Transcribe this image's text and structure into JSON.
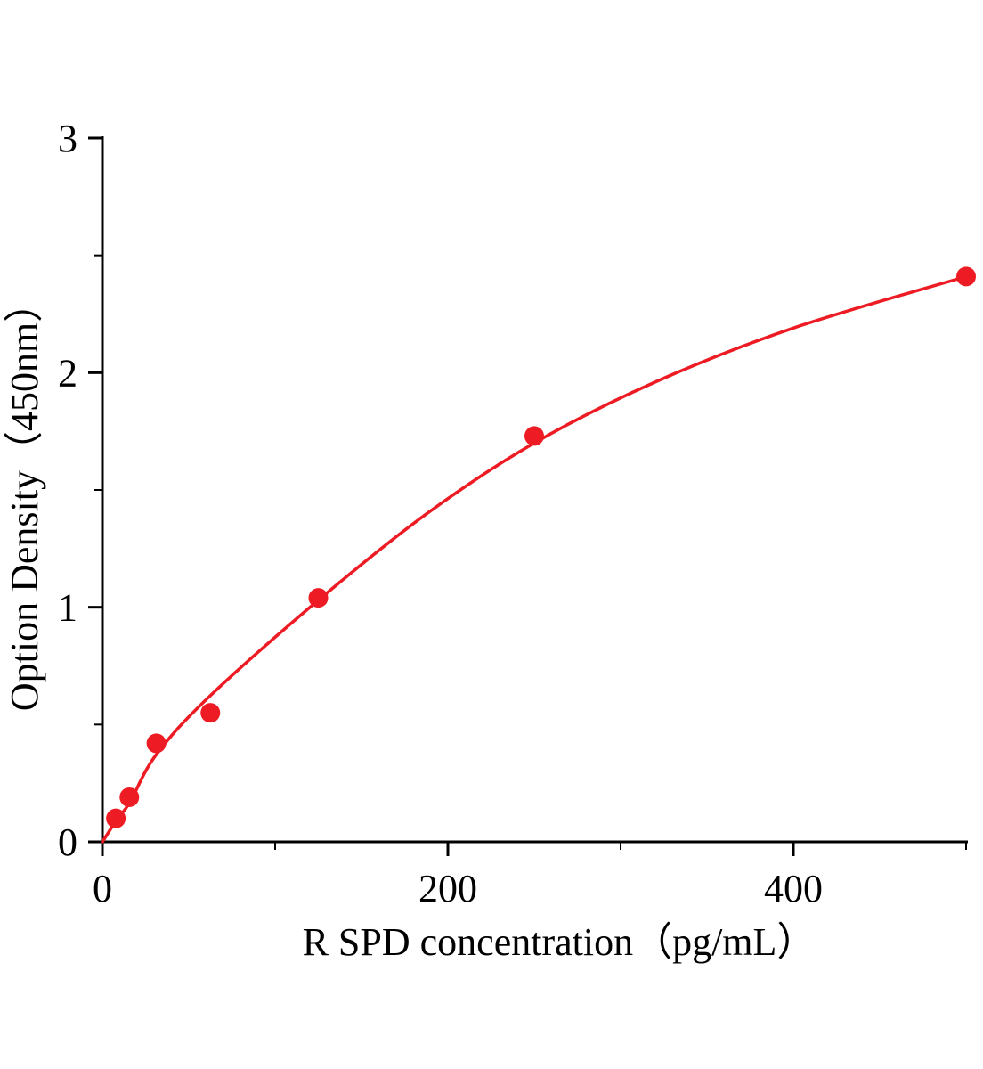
{
  "chart_data": {
    "type": "scatter",
    "title": "",
    "xlabel": "R SPD concentration（pg/mL）",
    "ylabel": "Option Density（450nm）",
    "xlim": [
      0,
      500
    ],
    "ylim": [
      0,
      3
    ],
    "xticks": [
      0,
      200,
      400
    ],
    "xtick_labels": [
      "0",
      "200",
      "400"
    ],
    "x_minor_ticks": [
      100,
      300,
      500
    ],
    "yticks": [
      0,
      1,
      2,
      3
    ],
    "ytick_labels": [
      "0",
      "1",
      "2",
      "3"
    ],
    "y_minor_ticks": [
      0.5,
      1.5,
      2.5
    ],
    "grid": false,
    "legend": "none",
    "colors": {
      "accent": "#ed1c24",
      "axis": "#000000",
      "background": "#ffffff"
    },
    "series": [
      {
        "name": "standard-points",
        "type": "scatter",
        "color": "#ed1c24",
        "marker": "circle",
        "points": [
          [
            7.8,
            0.1
          ],
          [
            15.6,
            0.19
          ],
          [
            31.25,
            0.42
          ],
          [
            62.5,
            0.55
          ],
          [
            125,
            1.04
          ],
          [
            250,
            1.73
          ],
          [
            500,
            2.41
          ]
        ]
      },
      {
        "name": "fitted-curve",
        "type": "line",
        "color": "#ed1c24",
        "points": [
          [
            0,
            0.0
          ],
          [
            8,
            0.09
          ],
          [
            16,
            0.17
          ],
          [
            31,
            0.37
          ],
          [
            62,
            0.62
          ],
          [
            125,
            1.03
          ],
          [
            188,
            1.4
          ],
          [
            250,
            1.7
          ],
          [
            320,
            1.96
          ],
          [
            400,
            2.19
          ],
          [
            500,
            2.41
          ]
        ]
      }
    ]
  }
}
